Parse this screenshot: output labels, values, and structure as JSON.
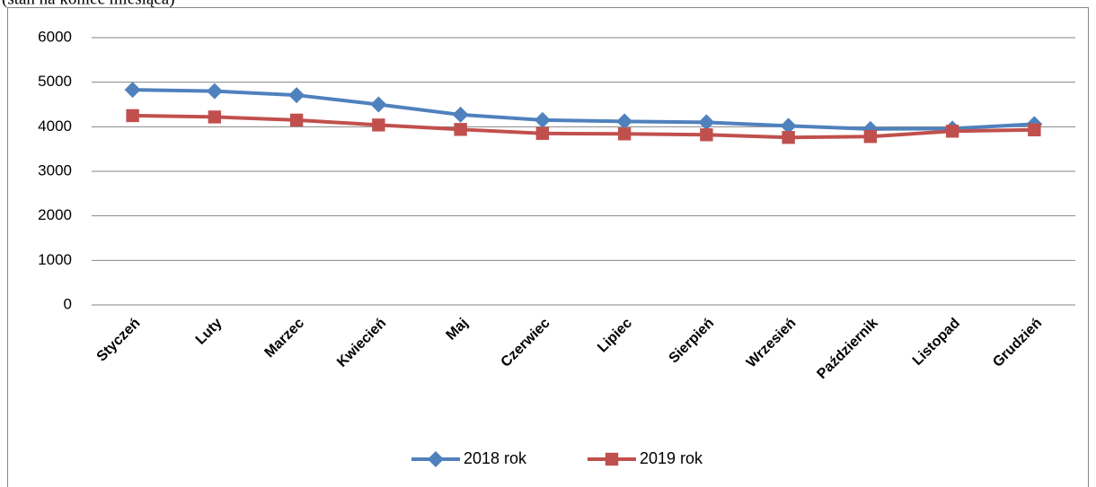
{
  "chart_data": {
    "type": "line",
    "subtitle": "(stan na koniec miesiąca)",
    "categories": [
      "Styczeń",
      "Luty",
      "Marzec",
      "Kwiecień",
      "Maj",
      "Czerwiec",
      "Lipiec",
      "Sierpień",
      "Wrzesień",
      "Październik",
      "Listopad",
      "Grudzień"
    ],
    "series": [
      {
        "name": "2018 rok",
        "color": "#4f81bd",
        "marker": "diamond",
        "values": [
          4830,
          4800,
          4710,
          4500,
          4270,
          4150,
          4120,
          4100,
          4020,
          3950,
          3960,
          4060
        ]
      },
      {
        "name": "2019 rok",
        "color": "#c0504d",
        "marker": "square",
        "values": [
          4250,
          4220,
          4150,
          4040,
          3940,
          3850,
          3840,
          3820,
          3760,
          3780,
          3900,
          3930
        ]
      }
    ],
    "ylim": [
      0,
      6000
    ],
    "yticks": [
      0,
      1000,
      2000,
      3000,
      4000,
      5000,
      6000
    ],
    "grid": true,
    "legend": "bottom"
  }
}
